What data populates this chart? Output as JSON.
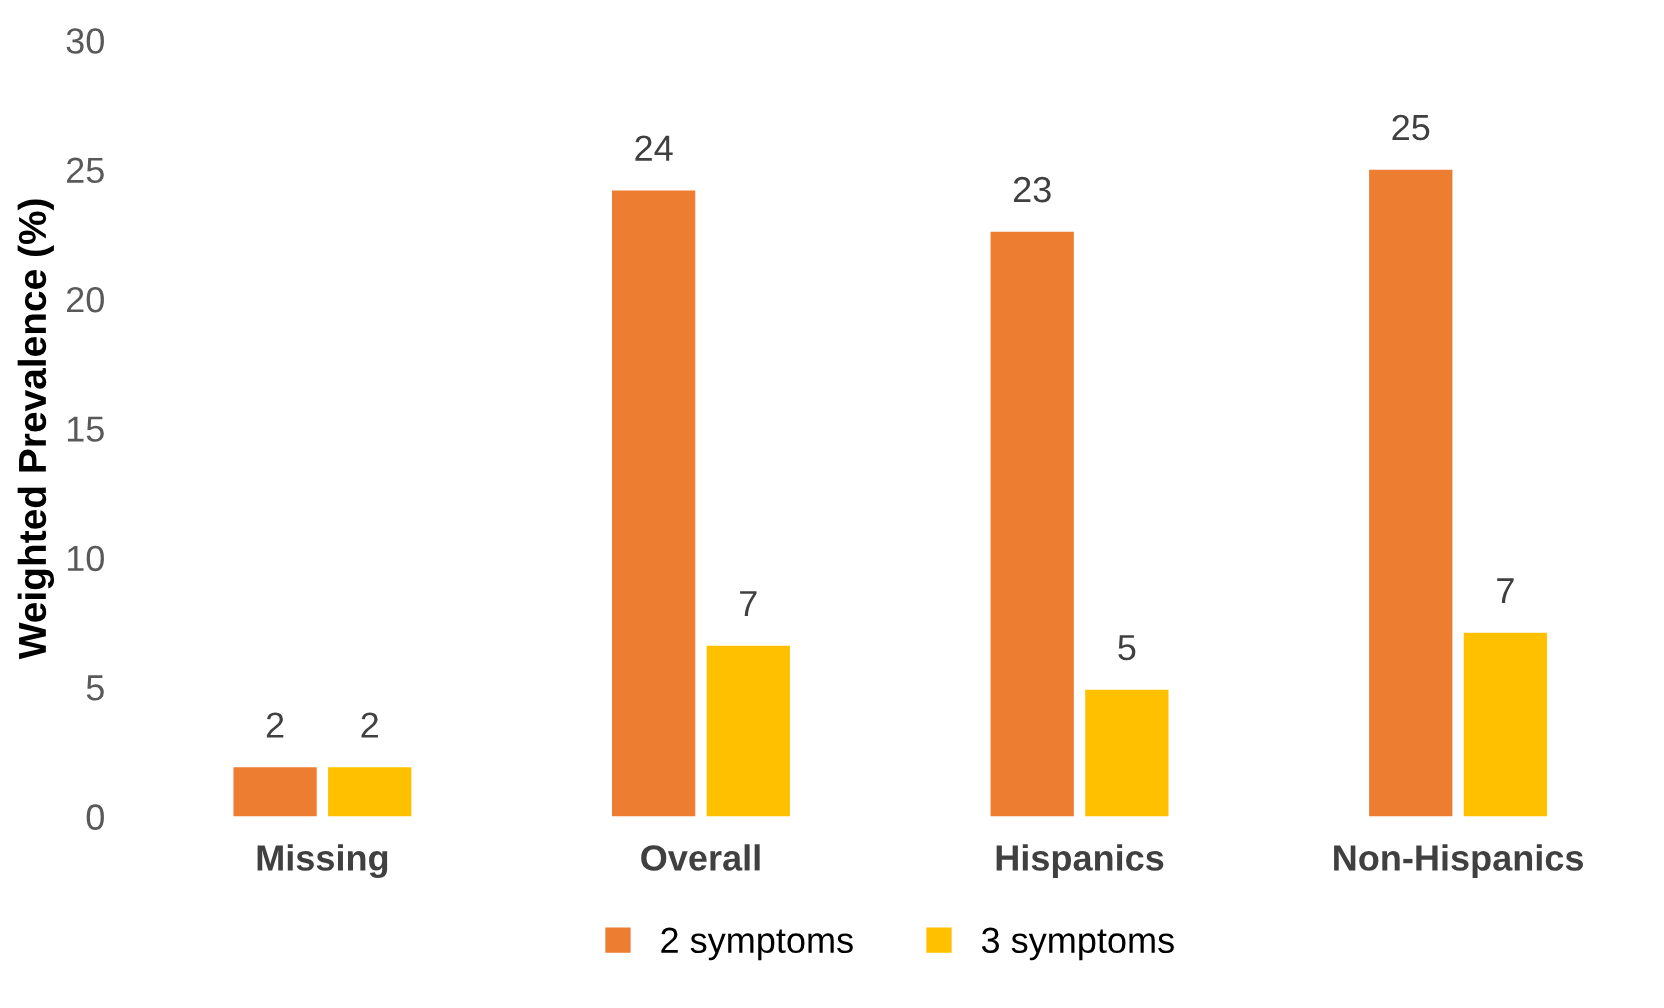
{
  "chart_data": {
    "type": "bar",
    "ylabel": "Weighted Prevalence (%)",
    "categories": [
      "Missing",
      "Overall",
      "Hispanics",
      "Non-Hispanics"
    ],
    "series": [
      {
        "name": "2 symptoms",
        "color": "#ed7d31",
        "values": [
          1.9,
          24.2,
          22.6,
          25.0
        ],
        "value_labels": [
          "2",
          "24",
          "23",
          "25"
        ]
      },
      {
        "name": "3 symptoms",
        "color": "#ffc000",
        "values": [
          1.9,
          6.6,
          4.9,
          7.1
        ],
        "value_labels": [
          "2",
          "7",
          "5",
          "7"
        ]
      }
    ],
    "ylim": [
      0,
      30
    ],
    "yticks": [
      0,
      5,
      10,
      15,
      20,
      25,
      30
    ],
    "grid": false,
    "legend": "bottom"
  }
}
